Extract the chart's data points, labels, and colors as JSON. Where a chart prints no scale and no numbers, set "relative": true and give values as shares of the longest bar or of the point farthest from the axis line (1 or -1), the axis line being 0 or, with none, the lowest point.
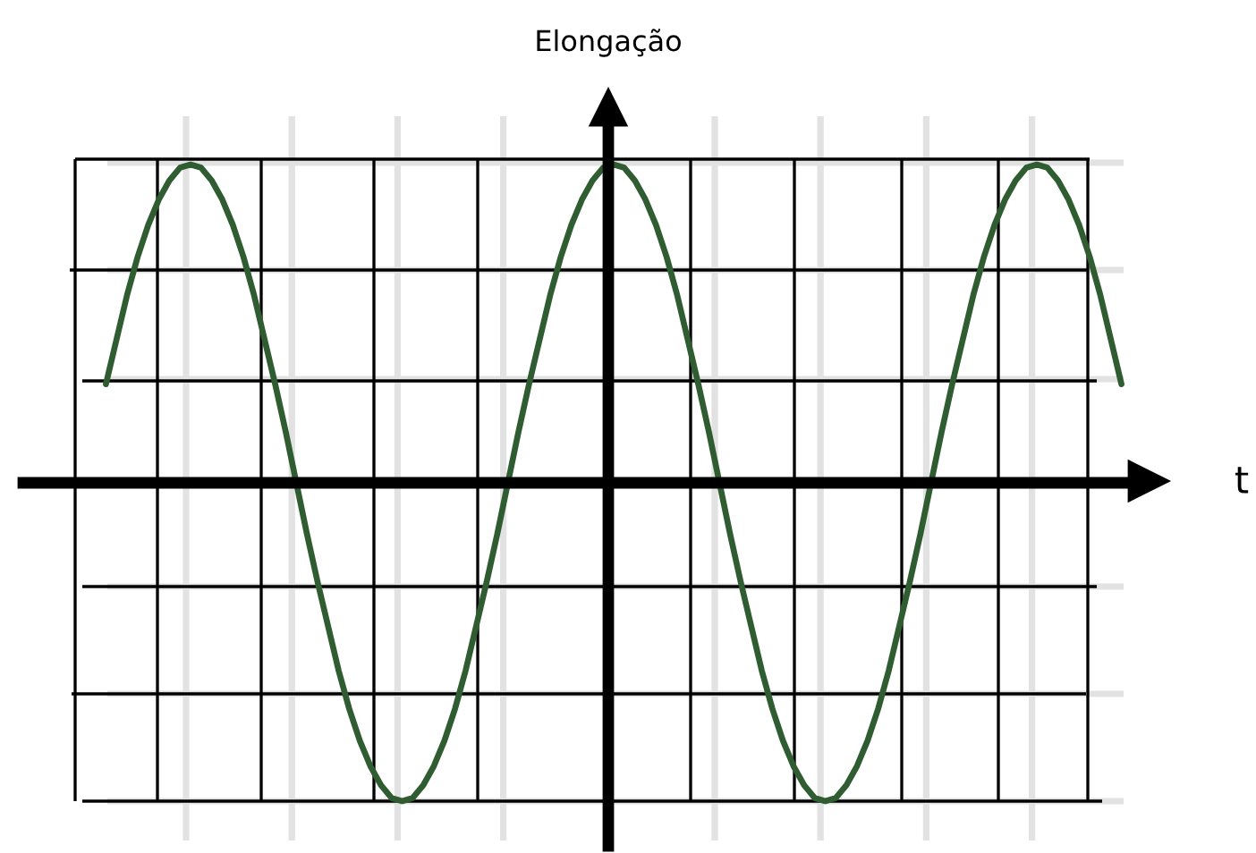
{
  "chart_data": {
    "type": "line",
    "xlabel": "t",
    "ylabel": "Elongação",
    "relative": true,
    "grid": true,
    "categories": [
      null,
      null,
      null,
      null,
      null,
      null,
      null,
      null,
      null,
      null,
      null,
      null,
      null,
      null,
      null,
      null,
      null,
      null,
      null,
      null,
      null,
      null,
      null,
      null,
      null,
      null,
      null,
      null,
      null,
      null,
      null,
      null,
      null,
      null,
      null,
      null,
      null,
      null,
      null,
      null,
      null,
      null,
      null,
      null,
      null,
      null,
      null,
      null,
      null,
      null,
      null,
      null,
      null,
      null,
      null,
      null,
      null,
      null,
      null,
      null,
      null,
      null,
      null,
      null,
      null,
      null,
      null,
      null,
      null,
      null,
      null,
      null,
      null,
      null,
      null,
      null,
      null,
      null,
      null,
      null,
      null,
      null,
      null,
      null,
      null,
      null,
      null,
      null,
      null,
      null,
      null,
      null,
      null,
      null,
      null,
      null,
      null
    ],
    "color": "#2f5d31",
    "values": [
      0.31,
      0.45,
      0.59,
      0.71,
      0.81,
      0.89,
      0.95,
      0.99,
      1,
      0.99,
      0.95,
      0.89,
      0.81,
      0.71,
      0.59,
      0.45,
      0.31,
      0.16,
      0,
      -0.16,
      -0.31,
      -0.45,
      -0.59,
      -0.71,
      -0.81,
      -0.89,
      -0.95,
      -0.99,
      -1,
      -0.99,
      -0.95,
      -0.89,
      -0.81,
      -0.71,
      -0.59,
      -0.45,
      -0.31,
      -0.16,
      0,
      0.16,
      0.31,
      0.45,
      0.59,
      0.71,
      0.81,
      0.89,
      0.95,
      0.99,
      1,
      0.99,
      0.95,
      0.89,
      0.81,
      0.71,
      0.59,
      0.45,
      0.31,
      0.16,
      0,
      -0.16,
      -0.31,
      -0.45,
      -0.59,
      -0.71,
      -0.81,
      -0.89,
      -0.95,
      -0.99,
      -1,
      -0.99,
      -0.95,
      -0.89,
      -0.81,
      -0.71,
      -0.59,
      -0.45,
      -0.31,
      -0.16,
      0,
      0.16,
      0.31,
      0.45,
      0.59,
      0.71,
      0.81,
      0.89,
      0.95,
      0.99,
      1,
      0.99,
      0.95,
      0.89,
      0.81,
      0.71,
      0.59,
      0.45,
      0.31
    ]
  }
}
